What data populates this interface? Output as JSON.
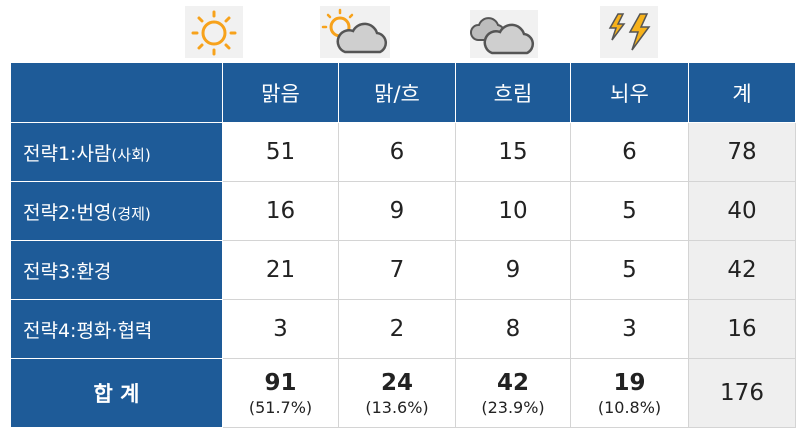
{
  "table": {
    "header": [
      "맑음",
      "맑/흐",
      "흐림",
      "뇌우",
      "계"
    ],
    "rows": [
      {
        "label": "전략1:사람",
        "note": "(사회)",
        "values": [
          51,
          6,
          15,
          6,
          78
        ]
      },
      {
        "label": "전략2:번영",
        "note": "(경제)",
        "values": [
          16,
          9,
          10,
          5,
          40
        ]
      },
      {
        "label": "전략3:환경",
        "values": [
          21,
          7,
          9,
          5,
          42
        ]
      },
      {
        "label": "전략4:평화·협력",
        "values": [
          3,
          2,
          8,
          3,
          16
        ]
      }
    ],
    "total": {
      "label": "합 계",
      "values": [
        91,
        24,
        42,
        19,
        176
      ],
      "shares": [
        "(51.7%)",
        "(13.6%)",
        "(23.9%)",
        "(10.8%)"
      ]
    }
  }
}
